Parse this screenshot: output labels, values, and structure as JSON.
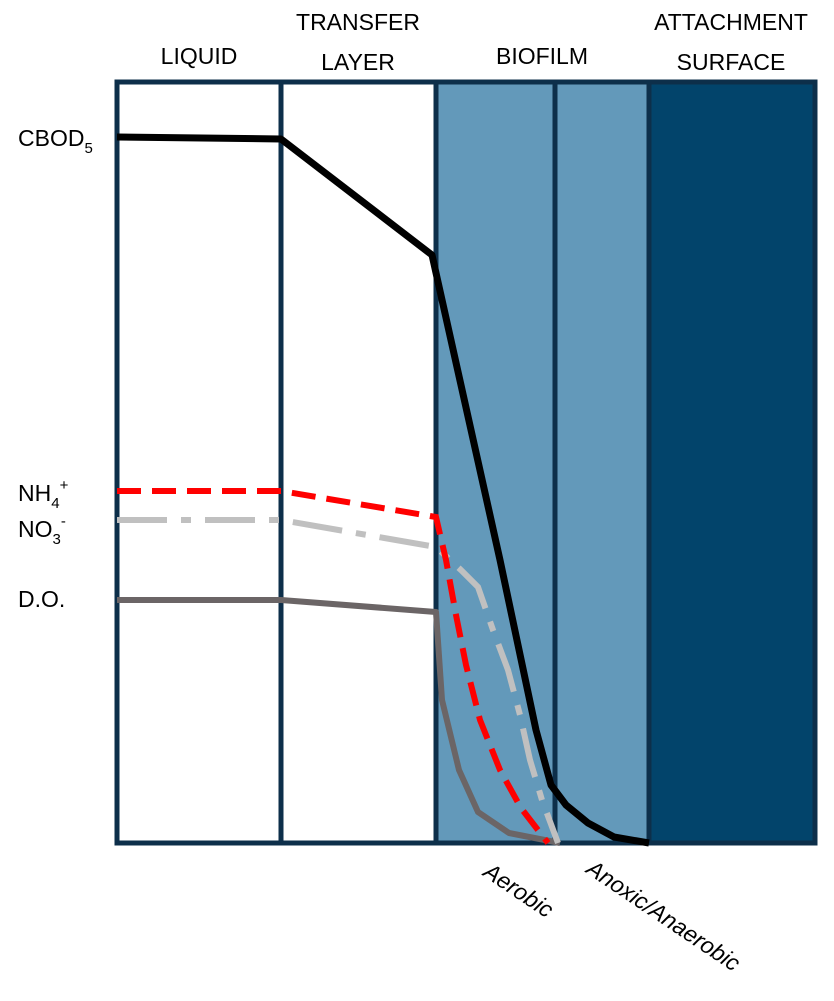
{
  "headers": {
    "liquid": "LIQUID",
    "transfer_line1": "TRANSFER",
    "transfer_line2": "LAYER",
    "biofilm": "BIOFILM",
    "attachment_line1": "ATTACHMENT",
    "attachment_line2": "SURFACE"
  },
  "labels": {
    "cbod_main": "CBOD",
    "cbod_sub": "5",
    "nh_main": "NH",
    "nh_sub": "4",
    "nh_sup": "+",
    "no_main": "NO",
    "no_sub": "3",
    "no_sup": "-",
    "do": "D.O."
  },
  "zones": {
    "aerobic": "Aerobic",
    "anoxic": "Anoxic/Anaerobic"
  },
  "colors": {
    "outline": "#0d2f4a",
    "biofilm": "#6399ba",
    "attachment": "#02446b",
    "cbod": "#000000",
    "nh4": "#ff0000",
    "no3": "#c0c0c0",
    "do": "#6b6566"
  }
}
